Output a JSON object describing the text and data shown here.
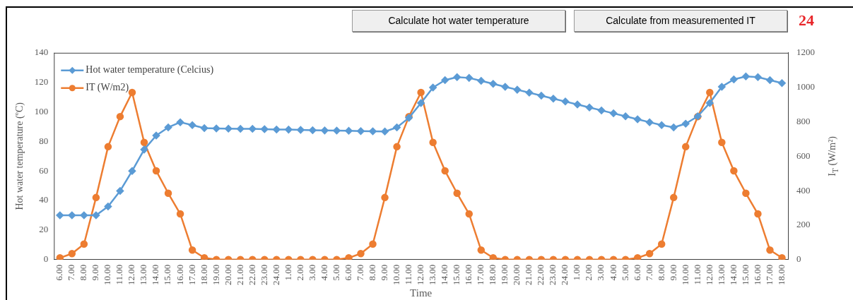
{
  "chart_data": {
    "type": "line",
    "xlabel": "Time",
    "ylabel": "Hot water temperature (ºC)",
    "y2label": "I$_{T}$ (W/m²)",
    "annotations": [
      "Calculate hot water temperature",
      "Calculate from measuremented IT",
      "24"
    ],
    "categories": [
      "6.00",
      "7.00",
      "8.00",
      "9.00",
      "10.00",
      "11.00",
      "12.00",
      "13.00",
      "14.00",
      "15.00",
      "16.00",
      "17.00",
      "18.00",
      "19.00",
      "20.00",
      "21.00",
      "22.00",
      "23.00",
      "24.00",
      "1.00",
      "2.00",
      "3.00",
      "4.00",
      "5.00",
      "6.00",
      "7.00",
      "8.00",
      "9.00",
      "10.00",
      "11.00",
      "12.00",
      "13.00",
      "14.00",
      "15.00",
      "16.00",
      "17.00",
      "18.00",
      "19.00",
      "20.00",
      "21.00",
      "22.00",
      "23.00",
      "24.00",
      "1.00",
      "2.00",
      "3.00",
      "4.00",
      "5.00",
      "6.00",
      "7.00",
      "8.00",
      "9.00",
      "10.00",
      "11.00",
      "12.00",
      "13.00",
      "14.00",
      "15.00",
      "16.00",
      "17.00",
      "18.00"
    ],
    "series": [
      {
        "name": "Hot water temperature (Celcius)",
        "color": "#5b9bd5",
        "marker": "diamond",
        "values": [
          30,
          30,
          30,
          30,
          36,
          46.5,
          60,
          74.5,
          84,
          89.5,
          93,
          91,
          89,
          88.8,
          88.6,
          88.5,
          88.5,
          88.3,
          88.1,
          88,
          87.8,
          87.6,
          87.4,
          87.3,
          87.2,
          87,
          86.9,
          86.7,
          89.5,
          96,
          106,
          116.5,
          121.5,
          123.5,
          123,
          121,
          119,
          117,
          115,
          113,
          111,
          109,
          107,
          105,
          103,
          101,
          99,
          97,
          95,
          93,
          91,
          89.5,
          92,
          97,
          106,
          117,
          122,
          124,
          123.5,
          121.5,
          119.5
        ]
      },
      {
        "name": "IT (W/m2)",
        "color": "#ed7d31",
        "marker": "circle",
        "axis": "y2",
        "values": [
          10,
          35,
          90,
          360,
          655,
          830,
          970,
          680,
          515,
          385,
          265,
          55,
          10,
          0,
          0,
          0,
          0,
          0,
          0,
          0,
          0,
          0,
          0,
          0,
          10,
          35,
          90,
          360,
          655,
          830,
          970,
          680,
          515,
          385,
          265,
          55,
          10,
          0,
          0,
          0,
          0,
          0,
          0,
          0,
          0,
          0,
          0,
          0,
          10,
          35,
          90,
          360,
          655,
          830,
          970,
          680,
          515,
          385,
          265,
          55,
          10
        ]
      }
    ],
    "ylim": [
      0,
      140
    ],
    "yticks": [
      0,
      20,
      40,
      60,
      80,
      100,
      120,
      140
    ],
    "y2lim": [
      0,
      1200
    ],
    "y2ticks": [
      0,
      200,
      400,
      600,
      800,
      1000,
      1200
    ],
    "grid": false,
    "legend": "top left",
    "line_style": "solid"
  }
}
